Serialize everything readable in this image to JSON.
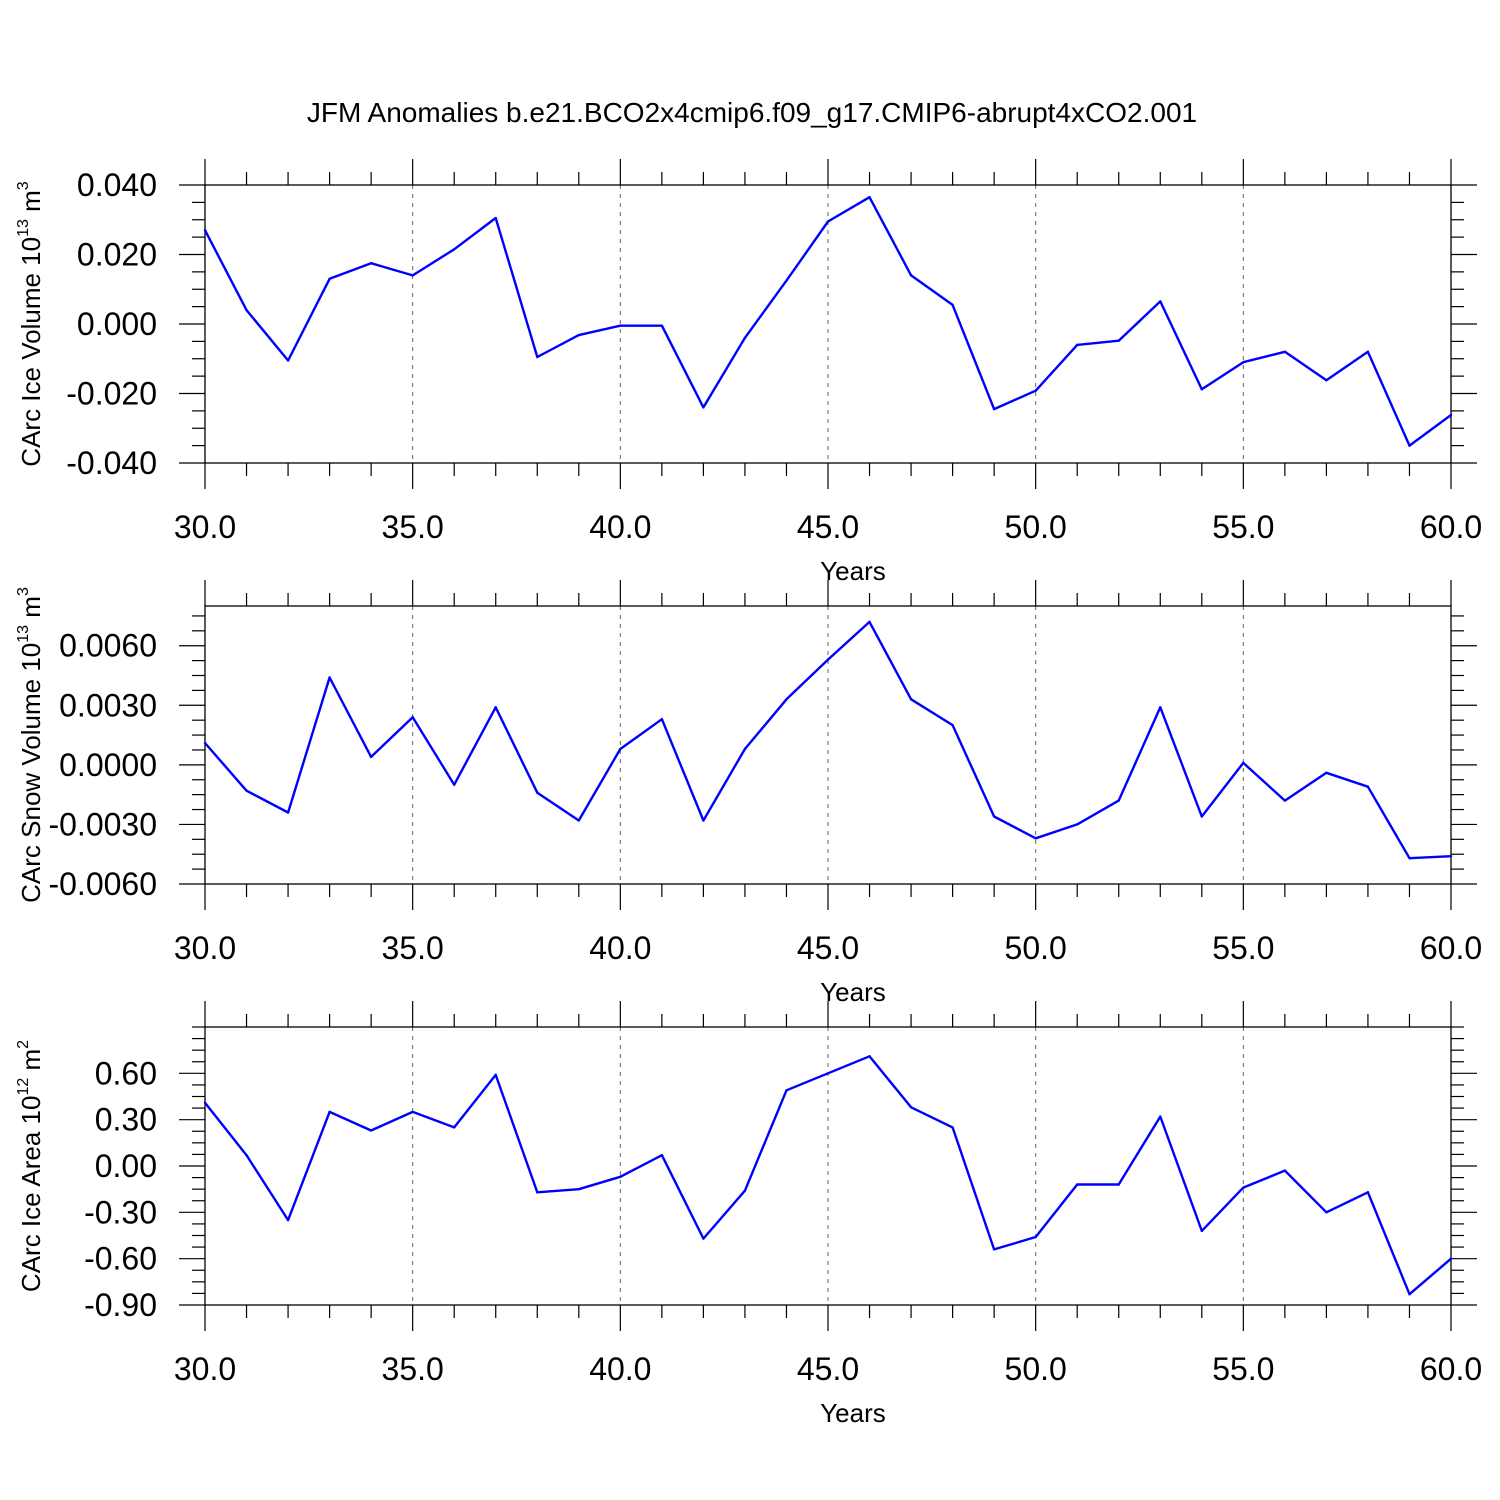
{
  "title": "JFM Anomalies b.e21.BCO2x4cmip6.f09_g17.CMIP6-abrupt4xCO2.001",
  "chart_data": [
    {
      "type": "line",
      "xlabel": "Years",
      "ylabel": {
        "prefix": "CArc Ice Volume 10",
        "exponent": "13",
        "unit": " m",
        "unit_exponent": "3"
      },
      "xlim": [
        30,
        60
      ],
      "ylim": [
        -0.04,
        0.04
      ],
      "xticks": [
        "30.0",
        "35.0",
        "40.0",
        "45.0",
        "50.0",
        "55.0",
        "60.0"
      ],
      "yticks": [
        "0.040",
        "0.020",
        "0.000",
        "-0.020",
        "-0.040"
      ],
      "ytick_values": [
        0.04,
        0.02,
        0.0,
        -0.02,
        -0.04
      ],
      "color": "#0000ff",
      "x": [
        30,
        31,
        32,
        33,
        34,
        35,
        36,
        37,
        38,
        39,
        40,
        41,
        42,
        43,
        44,
        45,
        46,
        47,
        48,
        49,
        50,
        51,
        52,
        53,
        54,
        55,
        56,
        57,
        58,
        59,
        60
      ],
      "values": [
        0.027,
        0.004,
        -0.0105,
        0.013,
        0.0175,
        0.014,
        0.0215,
        0.0305,
        -0.0095,
        -0.0032,
        -0.0005,
        -0.0005,
        -0.024,
        -0.004,
        0.0125,
        0.0295,
        0.0365,
        0.014,
        0.0055,
        -0.0245,
        -0.0192,
        -0.006,
        -0.0048,
        0.0065,
        -0.0188,
        -0.011,
        -0.008,
        -0.0162,
        -0.008,
        -0.035,
        -0.0262
      ]
    },
    {
      "type": "line",
      "xlabel": "Years",
      "ylabel": {
        "prefix": "CArc Snow Volume 10",
        "exponent": "13",
        "unit": " m",
        "unit_exponent": "3"
      },
      "xlim": [
        30,
        60
      ],
      "ylim": [
        -0.006,
        0.008
      ],
      "xticks": [
        "30.0",
        "35.0",
        "40.0",
        "45.0",
        "50.0",
        "55.0",
        "60.0"
      ],
      "yticks": [
        "0.0060",
        "0.0030",
        "0.0000",
        "-0.0030",
        "-0.0060"
      ],
      "ytick_values": [
        0.006,
        0.003,
        0.0,
        -0.003,
        -0.006
      ],
      "color": "#0000ff",
      "x": [
        30,
        31,
        32,
        33,
        34,
        35,
        36,
        37,
        38,
        39,
        40,
        41,
        42,
        43,
        44,
        45,
        46,
        47,
        48,
        49,
        50,
        51,
        52,
        53,
        54,
        55,
        56,
        57,
        58,
        59,
        60
      ],
      "values": [
        0.0011,
        -0.0013,
        -0.0024,
        0.0044,
        0.0004,
        0.0024,
        -0.001,
        0.0029,
        -0.0014,
        -0.0028,
        0.0008,
        0.0023,
        -0.0028,
        0.0008,
        0.0033,
        0.0053,
        0.0072,
        0.0033,
        0.002,
        -0.0026,
        -0.0037,
        -0.003,
        -0.0018,
        0.0029,
        -0.0026,
        0.0001,
        -0.0018,
        -0.0004,
        -0.0011,
        -0.0047,
        -0.0046
      ]
    },
    {
      "type": "line",
      "xlabel": "Years",
      "ylabel": {
        "prefix": "CArc Ice Area 10",
        "exponent": "12",
        "unit": " m",
        "unit_exponent": "2"
      },
      "xlim": [
        30,
        60
      ],
      "ylim": [
        -0.9,
        0.9
      ],
      "xticks": [
        "30.0",
        "35.0",
        "40.0",
        "45.0",
        "50.0",
        "55.0",
        "60.0"
      ],
      "yticks": [
        "0.60",
        "0.30",
        "0.00",
        "-0.30",
        "-0.60",
        "-0.90"
      ],
      "ytick_values": [
        0.6,
        0.3,
        0.0,
        -0.3,
        -0.6,
        -0.9
      ],
      "color": "#0000ff",
      "x": [
        30,
        31,
        32,
        33,
        34,
        35,
        36,
        37,
        38,
        39,
        40,
        41,
        42,
        43,
        44,
        45,
        46,
        47,
        48,
        49,
        50,
        51,
        52,
        53,
        54,
        55,
        56,
        57,
        58,
        59,
        60
      ],
      "values": [
        0.41,
        0.07,
        -0.35,
        0.35,
        0.23,
        0.35,
        0.25,
        0.59,
        -0.17,
        -0.15,
        -0.07,
        0.07,
        -0.47,
        -0.16,
        0.49,
        0.6,
        0.71,
        0.38,
        0.25,
        -0.54,
        -0.46,
        -0.12,
        -0.12,
        0.32,
        -0.42,
        -0.14,
        -0.03,
        -0.3,
        -0.17,
        -0.83,
        -0.6
      ]
    }
  ]
}
